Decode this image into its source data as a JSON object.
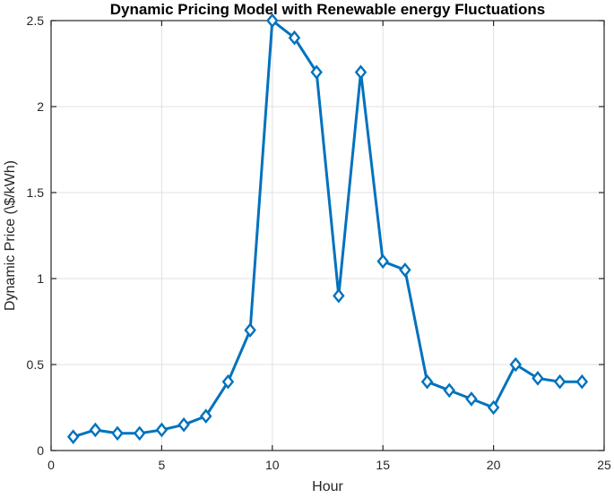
{
  "chart_data": {
    "type": "line",
    "title": "Dynamic Pricing Model with Renewable energy Fluctuations",
    "xlabel": "Hour",
    "ylabel": "Dynamic Price (\\$/kWh)",
    "x": [
      1,
      2,
      3,
      4,
      5,
      6,
      7,
      8,
      9,
      10,
      11,
      12,
      13,
      14,
      15,
      16,
      17,
      18,
      19,
      20,
      21,
      22,
      23,
      24
    ],
    "series": [
      {
        "name": "Dynamic Price",
        "values": [
          0.08,
          0.12,
          0.1,
          0.1,
          0.12,
          0.15,
          0.2,
          0.4,
          0.7,
          2.5,
          2.4,
          2.2,
          0.9,
          2.2,
          1.1,
          1.05,
          0.4,
          0.35,
          0.3,
          0.25,
          0.5,
          0.42,
          0.4,
          0.4
        ]
      }
    ],
    "xlim": [
      0,
      25
    ],
    "ylim": [
      0,
      2.5
    ],
    "xticks": [
      0,
      5,
      10,
      15,
      20,
      25
    ],
    "xtick_labels": [
      "0",
      "5",
      "10",
      "15",
      "20",
      "25"
    ],
    "yticks": [
      0,
      0.5,
      1,
      1.5,
      2,
      2.5
    ],
    "ytick_labels": [
      "0",
      "0.5",
      "1",
      "1.5",
      "2",
      "2.5"
    ],
    "grid": true,
    "legend_position": "none",
    "styles": {
      "line_color": "#0072BD",
      "line_width": 3,
      "marker": "diamond",
      "marker_fill": "#ffffff",
      "axis_color": "#262626",
      "grid_color": "#e0e0e0",
      "title_color": "#000000",
      "background": "#ffffff"
    }
  }
}
